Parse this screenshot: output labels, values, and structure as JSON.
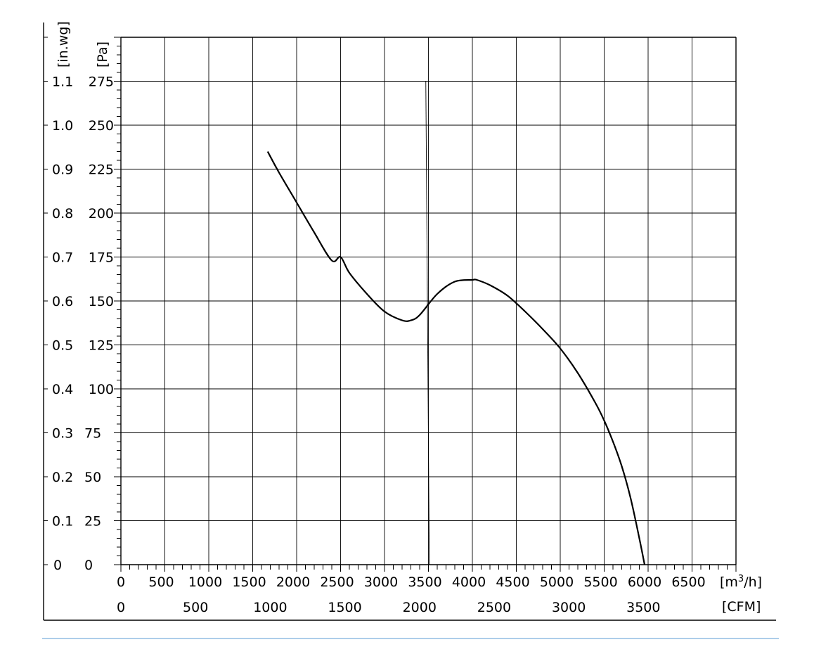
{
  "chart_data": {
    "type": "line",
    "title": "",
    "x_axes": [
      {
        "unit": "[m³/h]",
        "unit_base": "[m",
        "unit_sup": "3",
        "unit_tail": "/h]",
        "range": [
          0,
          7000
        ],
        "ticks": [
          0,
          500,
          1000,
          1500,
          2000,
          2500,
          3000,
          3500,
          4000,
          4500,
          5000,
          5500,
          6000,
          6500
        ],
        "tick_labels": [
          "0",
          "500",
          "1000",
          "1500",
          "2000",
          "2500",
          "3000",
          "3500",
          "4000",
          "4500",
          "5000",
          "5500",
          "6000",
          "6500"
        ]
      },
      {
        "unit": "[CFM]",
        "ticks": [
          0,
          500,
          1000,
          1500,
          2000,
          2500,
          3000,
          3500
        ],
        "tick_labels": [
          "0",
          "500",
          "1000",
          "1500",
          "2000",
          "2500",
          "3000",
          "3500"
        ]
      }
    ],
    "y_axes": [
      {
        "unit": "[Pa]",
        "range": [
          0,
          300
        ],
        "ticks": [
          0,
          25,
          50,
          75,
          100,
          125,
          150,
          175,
          200,
          225,
          250,
          275
        ],
        "tick_labels": [
          "0",
          "25",
          "50",
          "75",
          "100",
          "125",
          "150",
          "175",
          "200",
          "225",
          "250",
          "275"
        ]
      },
      {
        "unit": "[in.wg]",
        "ticks": [
          0,
          0.1,
          0.2,
          0.3,
          0.4,
          0.5,
          0.6,
          0.7,
          0.8,
          0.9,
          1.0,
          1.1
        ],
        "tick_labels": [
          "0",
          "0.1",
          "0.2",
          "0.3",
          "0.4",
          "0.5",
          "0.6",
          "0.7",
          "0.8",
          "0.9",
          "1.0",
          "1.1"
        ]
      }
    ],
    "grid": true,
    "series": [
      {
        "x": [
          1670,
          1800,
          2000,
          2200,
          2400,
          2500,
          2600,
          2800,
          3000,
          3200,
          3300,
          3400,
          3600,
          3800,
          4000,
          4050,
          4200,
          4400,
          4600,
          4800,
          5000,
          5200,
          5400,
          5500,
          5600,
          5700,
          5800,
          5900,
          5960
        ],
        "y": [
          235,
          223,
          206,
          189,
          173,
          175,
          166,
          154,
          144,
          139,
          139,
          142,
          154,
          161,
          162,
          162,
          159,
          153,
          144,
          134,
          123,
          109,
          92,
          82,
          70,
          56,
          38,
          15,
          0
        ]
      }
    ],
    "extra_line": {
      "x": [
        3470,
        3510
      ],
      "y": [
        275,
        0
      ]
    }
  }
}
